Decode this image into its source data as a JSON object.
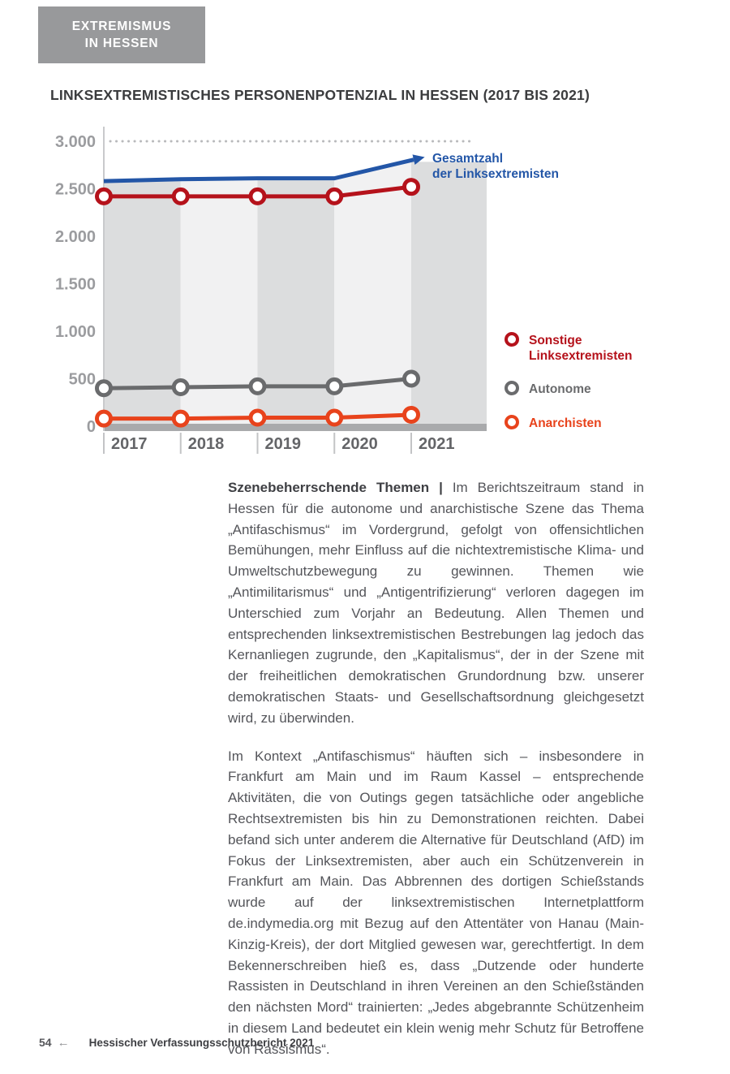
{
  "page": {
    "tag_box": {
      "line1": "EXTREMISMUS",
      "line2": "IN HESSEN"
    },
    "section_title": "LINKSEXTREMISTISCHES PERSONENPOTENZIAL IN HESSEN (2017 BIS 2021)",
    "footer": {
      "page_number": "54",
      "arrow": "←",
      "report_title": "Hessischer Verfassungsschutzbericht 2021"
    }
  },
  "chart_data": {
    "type": "line",
    "title": "LINKSEXTREMISTISCHES PERSONENPOTENZIAL IN HESSEN (2017 BIS 2021)",
    "x": [
      "2017",
      "2018",
      "2019",
      "2020",
      "2021"
    ],
    "series": [
      {
        "name": "Gesamtzahl der Linksextremisten",
        "color": "#2356a7",
        "values": [
          2580,
          2600,
          2610,
          2610,
          2800
        ],
        "style": "line-with-arrow"
      },
      {
        "name": "Sonstige Linksextremisten",
        "color": "#b5121b",
        "values": [
          2420,
          2420,
          2420,
          2420,
          2520
        ],
        "style": "line-circle-markers"
      },
      {
        "name": "Autonome",
        "color": "#6a6b6d",
        "values": [
          400,
          410,
          420,
          420,
          500
        ],
        "style": "line-circle-markers"
      },
      {
        "name": "Anarchisten",
        "color": "#e8431c",
        "values": [
          80,
          80,
          90,
          90,
          120
        ],
        "style": "line-circle-markers"
      }
    ],
    "ylim": [
      0,
      3000
    ],
    "ytick_values": [
      3000,
      2500,
      2000,
      1500,
      1000,
      500,
      0
    ],
    "yticks": [
      "3.000",
      "2.500",
      "2.000",
      "1.500",
      "1.000",
      "500",
      "0"
    ],
    "grid": "dotted gridline at 3000 only",
    "legend_position": "right",
    "background": "alternating gray year bands filled under total line",
    "band_colors": [
      "#dcddde",
      "#f1f1f2"
    ],
    "baseline_color": "#a9aaac",
    "axis_color": "#c9cacc",
    "tick_label_color": "#9b9c9f",
    "xlabel_color": "#646568",
    "legend": {
      "gesamtzahl": "Gesamtzahl\nder Linksextremisten",
      "sonstige": "Sonstige\nLinksextremisten",
      "autonome": "Autonome",
      "anarchisten": "Anarchisten"
    }
  },
  "body": {
    "paragraph1_lead": "Szenebeherrschende Themen | ",
    "paragraph1_text": "Im Berichtszeitraum stand in Hessen für die autonome und anarchistische Szene das Thema „Antifaschismus“ im Vordergrund, gefolgt von offensichtlichen Bemühungen, mehr Einfluss auf die nichtextremistische Klima- und Umweltschutzbewegung zu gewinnen. Themen wie „Antimilitarismus“ und „Antigentrifizierung“ verloren dagegen im Unterschied zum Vorjahr an Bedeutung. Allen Themen und entsprechenden linksextremistischen Bestrebungen lag jedoch das Kernanliegen zugrunde, den „Kapitalismus“, der in der Szene mit der freiheitlichen demokratischen Grundordnung bzw. unserer demokratischen Staats- und Gesellschaftsordnung gleichgesetzt wird, zu überwinden.",
    "paragraph2_text": "Im Kontext „Antifaschismus“ häuften sich – insbesondere in Frankfurt am Main und im Raum Kassel – entsprechende Aktivitäten, die von Outings gegen tatsächliche oder angebliche Rechtsextremisten bis hin zu Demonstrationen reichten. Dabei befand sich unter anderem die Alternative für Deutschland (AfD) im Fokus der Linksextremisten, aber auch ein Schützenverein in Frankfurt am Main. Das Abbrennen des dortigen Schießstands wurde auf der linksextremistischen Internetplattform de.indymedia.org mit Bezug auf den Attentäter von Hanau (Main-Kinzig-Kreis), der dort Mitglied gewesen war, gerechtfertigt. In dem Bekennerschreiben hieß es, dass „Dutzende oder hunderte Rassisten in Deutschland in ihren Vereinen an den Schießständen den nächsten Mord“ trainierten: „Jedes abgebrannte Schützenheim in diesem Land bedeutet ein klein wenig mehr Schutz für Betroffene von Rassismus“."
  }
}
